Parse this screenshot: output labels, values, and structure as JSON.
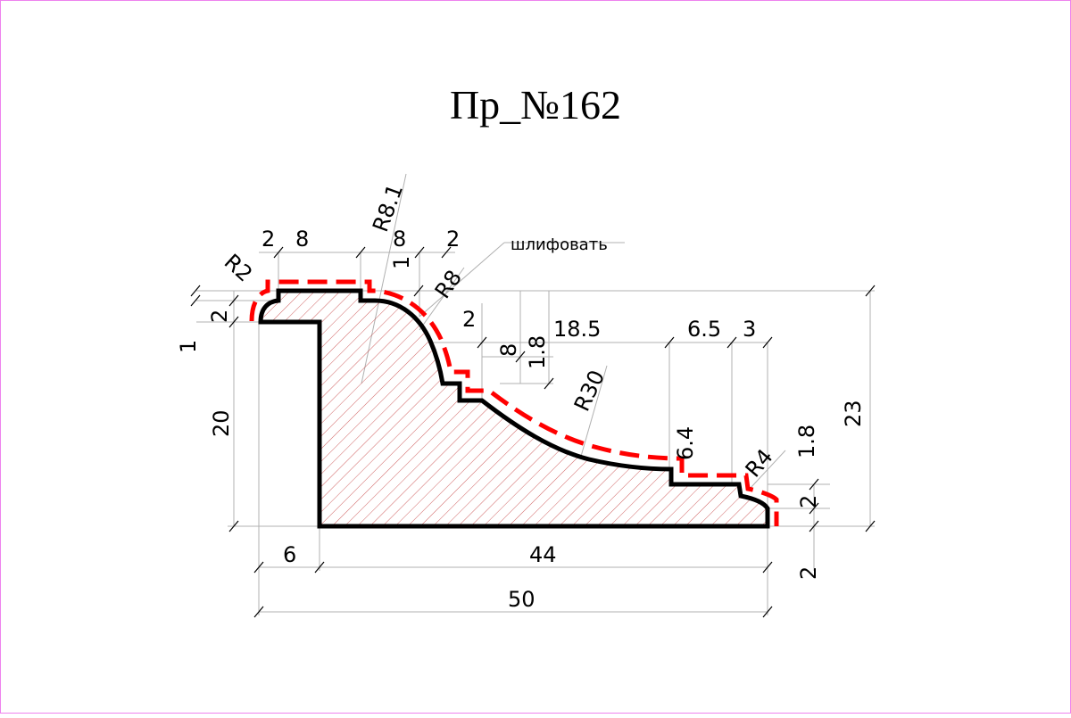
{
  "title": "Пр_№162",
  "note": "шлифовать",
  "colors": {
    "frame": "#ee82ee",
    "profile_outline": "#000000",
    "finish_line": "#ff0000",
    "hatch": "#c43b3b",
    "dimension_line": "#b0b0b0"
  },
  "radii": {
    "r2": "R2",
    "r8_1": "R8.1",
    "r8": "R8",
    "r30": "R30",
    "r4": "R4"
  },
  "dimensions": {
    "top_2a": "2",
    "top_8a": "8",
    "top_8b": "8",
    "top_2b": "2",
    "top_1": "1",
    "left_1": "1",
    "left_2": "2",
    "left_20": "20",
    "mid_2": "2",
    "mid_8": "8",
    "mid_1_8": "1.8",
    "top_18_5": "18.5",
    "top_6_5": "6.5",
    "top_3": "3",
    "step_6_4": "6.4",
    "right_1_8": "1.8",
    "right_2": "2",
    "right_23": "23",
    "bottom_right_2": "2",
    "bottom_6": "6",
    "bottom_44": "44",
    "bottom_50": "50"
  }
}
